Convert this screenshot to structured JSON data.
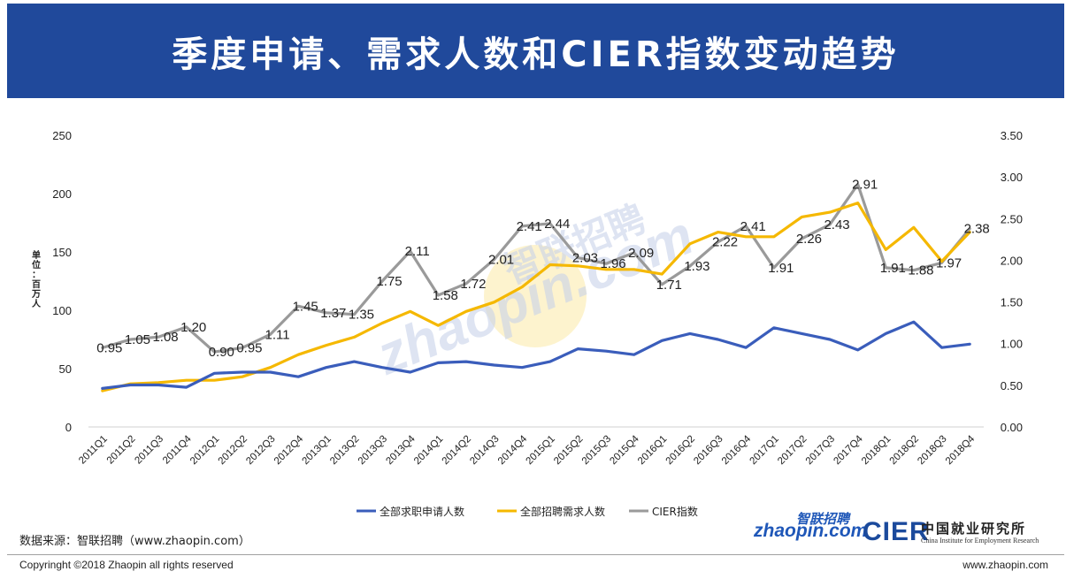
{
  "title": "季度申请、需求人数和CIER指数变动趋势",
  "footer": {
    "source": "数据来源：智联招聘（www.zhaopin.com）",
    "copyright": "Copyringht ©2018 Zhaopin all rights reserved",
    "website": "www.zhaopin.com"
  },
  "logos": {
    "zhaopin_cn": "智联招聘",
    "zhaopin_en": "zhaopin.com",
    "cier": "CIER",
    "cier_cn": "中国就业研究所",
    "cier_en": "China Institute for Employment Research"
  },
  "watermark": {
    "cn": "智联招聘",
    "en": "zhaopin.com"
  },
  "colors": {
    "banner": "#20499b",
    "applicants": "#3a5dbb",
    "demand": "#f5b800",
    "cier": "#9a9a9a"
  },
  "chart_data": {
    "type": "line",
    "ylabel": "单位：百万人",
    "ylim_left": [
      0,
      250
    ],
    "ylim_right": [
      0,
      3.5
    ],
    "yticks_left": [
      "0",
      "50",
      "100",
      "150",
      "200",
      "250"
    ],
    "yticks_right": [
      "0.00",
      "0.50",
      "1.00",
      "1.50",
      "2.00",
      "2.50",
      "3.00",
      "3.50"
    ],
    "categories": [
      "2011Q1",
      "2011Q2",
      "2011Q3",
      "2011Q4",
      "2012Q1",
      "2012Q2",
      "2012Q3",
      "2012Q4",
      "2013Q1",
      "2013Q2",
      "2013Q3",
      "2013Q4",
      "2014Q1",
      "2014Q2",
      "2014Q3",
      "2014Q4",
      "2015Q1",
      "2015Q2",
      "2015Q3",
      "2015Q4",
      "2016Q1",
      "2016Q2",
      "2016Q3",
      "2016Q4",
      "2017Q1",
      "2017Q2",
      "2017Q3",
      "2017Q4",
      "2018Q1",
      "2018Q2",
      "2018Q3",
      "2018Q4"
    ],
    "grid": false,
    "legend_position": "bottom",
    "series": [
      {
        "name": "全部求职申请人数",
        "axis": "left",
        "values": [
          33,
          36,
          36,
          34,
          46,
          47,
          47,
          43,
          51,
          56,
          51,
          47,
          55,
          56,
          53,
          51,
          56,
          67,
          65,
          62,
          74,
          80,
          75,
          68,
          85,
          80,
          75,
          66,
          80,
          90,
          68,
          71
        ]
      },
      {
        "name": "全部招聘需求人数",
        "axis": "left",
        "values": [
          31,
          37,
          38,
          40,
          40,
          43,
          51,
          62,
          70,
          77,
          89,
          99,
          87,
          99,
          107,
          120,
          139,
          138,
          135,
          135,
          131,
          157,
          167,
          163,
          163,
          180,
          184,
          192,
          152,
          171,
          142,
          167
        ]
      },
      {
        "name": "CIER指数",
        "axis": "right",
        "values": [
          0.95,
          1.05,
          1.08,
          1.2,
          0.9,
          0.95,
          1.11,
          1.45,
          1.37,
          1.35,
          1.75,
          2.11,
          1.58,
          1.72,
          2.01,
          2.41,
          2.44,
          2.03,
          1.96,
          2.09,
          1.71,
          1.93,
          2.22,
          2.41,
          1.91,
          2.26,
          2.43,
          2.91,
          1.91,
          1.88,
          1.97,
          2.38
        ],
        "labels": [
          "0.95",
          "1.05",
          "1.08",
          "1.20",
          "0.90",
          "0.95",
          "1.11",
          "1.45",
          "1.37",
          "1.35",
          "1.75",
          "2.11",
          "1.58",
          "1.72",
          "2.01",
          "2.41",
          "2.44",
          "2.03",
          "1.96",
          "2.09",
          "1.71",
          "1.93",
          "2.22",
          "2.41",
          "1.91",
          "2.26",
          "2.43",
          "2.91",
          "1.91",
          "1.88",
          "1.97",
          "2.38"
        ]
      }
    ]
  }
}
